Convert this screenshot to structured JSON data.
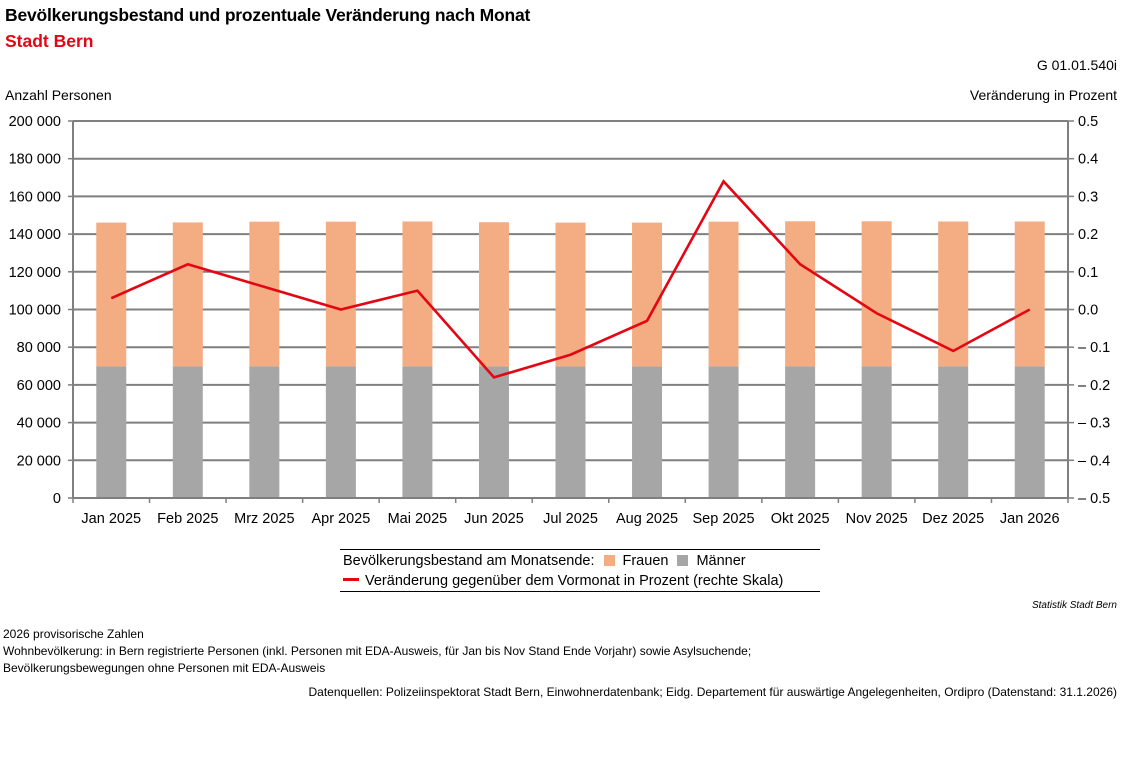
{
  "header": {
    "title": "Bevölkerungsbestand und prozentuale Veränderung nach Monat",
    "subtitle": "Stadt Bern",
    "code": "G 01.01.540i"
  },
  "colors": {
    "frauen": "#f4ad83",
    "maenner": "#a6a6a6",
    "line": "#e30613",
    "grid": "#7f7f7f",
    "subtitle": "#e30613"
  },
  "chart_data": {
    "type": "bar",
    "stacked": true,
    "title": "Bevölkerungsbestand und prozentuale Veränderung nach Monat",
    "ylabel": "Anzahl Personen",
    "y2label": "Veränderung in Prozent",
    "ylim": [
      0,
      200000
    ],
    "y2lim": [
      -0.5,
      0.5
    ],
    "grid": true,
    "legend_position": "bottom-center",
    "yticks": [
      "0",
      "20 000",
      "40 000",
      "60 000",
      "80 000",
      "100 000",
      "120 000",
      "140 000",
      "160 000",
      "180 000",
      "200 000"
    ],
    "y2ticks": [
      "– 0.5",
      "– 0.4",
      "– 0.3",
      "– 0.2",
      "– 0.1",
      "0.0",
      "0.1",
      "0.2",
      "0.3",
      "0.4",
      "0.5"
    ],
    "categories": [
      "Jan 2025",
      "Feb 2025",
      "Mrz 2025",
      "Apr 2025",
      "Mai 2025",
      "Jun 2025",
      "Jul 2025",
      "Aug 2025",
      "Sep 2025",
      "Okt 2025",
      "Nov 2025",
      "Dez 2025",
      "Jan 2026"
    ],
    "series": [
      {
        "name": "Männer",
        "type": "bar",
        "axis": "left",
        "values": [
          69800,
          69800,
          69900,
          69900,
          69900,
          69800,
          69800,
          69800,
          69900,
          69900,
          69900,
          69900,
          69900
        ]
      },
      {
        "name": "Frauen",
        "type": "bar",
        "axis": "left",
        "values": [
          76300,
          76400,
          76700,
          76700,
          76800,
          76500,
          76300,
          76300,
          76700,
          76900,
          76900,
          76800,
          76800
        ]
      },
      {
        "name": "Veränderung gegenüber dem Vormonat in Prozent (rechte Skala)",
        "type": "line",
        "axis": "right",
        "values": [
          0.03,
          0.12,
          0.06,
          0.0,
          0.05,
          -0.18,
          -0.12,
          -0.03,
          0.34,
          0.12,
          -0.01,
          -0.11,
          0.0
        ]
      }
    ]
  },
  "legend": {
    "prefix": "Bevölkerungsbestand am Monatsende:",
    "frauen": "Frauen",
    "maenner": "Männer",
    "line": "Veränderung gegenüber dem Vormonat in Prozent (rechte Skala)"
  },
  "footer": {
    "brand": "Statistik Stadt Bern",
    "notes": [
      "2026 provisorische Zahlen",
      "Wohnbevölkerung: in Bern registrierte Personen (inkl. Personen mit EDA-Ausweis, für Jan bis Nov Stand Ende Vorjahr) sowie Asylsuchende;",
      "Bevölkerungsbewegungen ohne Personen mit EDA-Ausweis"
    ],
    "sources": "Datenquellen: Polizeiinspektorat Stadt Bern, Einwohnerdatenbank; Eidg. Departement für auswärtige Angelegenheiten, Ordipro (Datenstand: 31.1.2026)"
  }
}
